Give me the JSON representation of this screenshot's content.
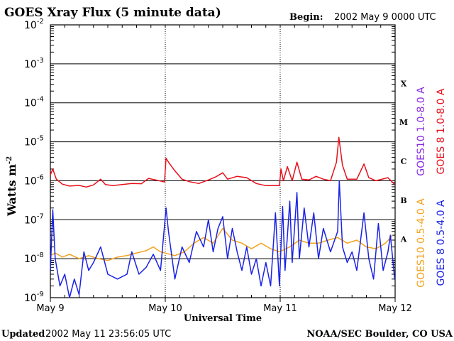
{
  "chart_data": {
    "type": "line",
    "title": "GOES Xray Flux (5 minute data)",
    "begin_label": "Begin:",
    "begin_value": "2002 May 9 0000 UTC",
    "ylabel": "Watts m",
    "ylabel_sup": "-2",
    "xlabel": "Universal Time",
    "y_scale": "log",
    "ylim": [
      1e-09,
      0.01
    ],
    "y_ticks": [
      {
        "base": "10",
        "exp": "-2",
        "value": 0.01
      },
      {
        "base": "10",
        "exp": "-3",
        "value": 0.001
      },
      {
        "base": "10",
        "exp": "-4",
        "value": 0.0001
      },
      {
        "base": "10",
        "exp": "-5",
        "value": 1e-05
      },
      {
        "base": "10",
        "exp": "-6",
        "value": 1e-06
      },
      {
        "base": "10",
        "exp": "-7",
        "value": 1e-07
      },
      {
        "base": "10",
        "exp": "-8",
        "value": 1e-08
      },
      {
        "base": "10",
        "exp": "-9",
        "value": 1e-09
      }
    ],
    "xlim": [
      "2002-05-09",
      "2002-05-12"
    ],
    "x_ticks": [
      {
        "label": "May 9",
        "value": "2002-05-09"
      },
      {
        "label": "May 10",
        "value": "2002-05-10"
      },
      {
        "label": "May 11",
        "value": "2002-05-11"
      },
      {
        "label": "May 12",
        "value": "2002-05-12"
      }
    ],
    "flare_classes": [
      {
        "label": "X",
        "value": 0.0001
      },
      {
        "label": "M",
        "value": 1e-05
      },
      {
        "label": "C",
        "value": 1e-06
      },
      {
        "label": "B",
        "value": 1e-07
      },
      {
        "label": "A",
        "value": 1e-08
      }
    ],
    "grid": true,
    "series": [
      {
        "name": "GOES10 1.0-8.0 A",
        "color": "#8a2be2",
        "values": []
      },
      {
        "name": "GOES 8 1.0-8.0 A",
        "color": "#e8101c",
        "values": [
          [
            "2002-05-09 00:00",
            1.4e-06
          ],
          [
            "2002-05-09 00:30",
            2e-06
          ],
          [
            "2002-05-09 01:15",
            1.1e-06
          ],
          [
            "2002-05-09 02:30",
            8.2e-07
          ],
          [
            "2002-05-09 04:00",
            7.3e-07
          ],
          [
            "2002-05-09 06:00",
            7.6e-07
          ],
          [
            "2002-05-09 07:30",
            6.9e-07
          ],
          [
            "2002-05-09 09:00",
            7.8e-07
          ],
          [
            "2002-05-09 10:30",
            1.1e-06
          ],
          [
            "2002-05-09 11:30",
            8e-07
          ],
          [
            "2002-05-09 13:00",
            7.5e-07
          ],
          [
            "2002-05-09 15:00",
            8e-07
          ],
          [
            "2002-05-09 17:00",
            8.5e-07
          ],
          [
            "2002-05-09 19:00",
            8.4e-07
          ],
          [
            "2002-05-09 20:30",
            1.15e-06
          ],
          [
            "2002-05-09 22:00",
            1.05e-06
          ],
          [
            "2002-05-09 23:50",
            9.3e-07
          ],
          [
            "2002-05-10 00:10",
            3.8e-06
          ],
          [
            "2002-05-10 00:40",
            3e-06
          ],
          [
            "2002-05-10 02:00",
            1.8e-06
          ],
          [
            "2002-05-10 03:30",
            1.1e-06
          ],
          [
            "2002-05-10 05:00",
            9.5e-07
          ],
          [
            "2002-05-10 07:00",
            8.5e-07
          ],
          [
            "2002-05-10 09:00",
            1.05e-06
          ],
          [
            "2002-05-10 10:30",
            1.25e-06
          ],
          [
            "2002-05-10 12:00",
            1.6e-06
          ],
          [
            "2002-05-10 13:00",
            1.1e-06
          ],
          [
            "2002-05-10 15:00",
            1.3e-06
          ],
          [
            "2002-05-10 17:00",
            1.2e-06
          ],
          [
            "2002-05-10 19:00",
            8.5e-07
          ],
          [
            "2002-05-10 21:00",
            7.5e-07
          ],
          [
            "2002-05-10 23:50",
            7.5e-07
          ],
          [
            "2002-05-11 00:10",
            2e-06
          ],
          [
            "2002-05-11 00:40",
            1e-06
          ],
          [
            "2002-05-11 01:30",
            2.3e-06
          ],
          [
            "2002-05-11 02:30",
            1e-06
          ],
          [
            "2002-05-11 03:30",
            3e-06
          ],
          [
            "2002-05-11 04:30",
            1.1e-06
          ],
          [
            "2002-05-11 06:00",
            1.05e-06
          ],
          [
            "2002-05-11 07:30",
            1.3e-06
          ],
          [
            "2002-05-11 09:00",
            1.1e-06
          ],
          [
            "2002-05-11 10:30",
            1e-06
          ],
          [
            "2002-05-11 11:45",
            3e-06
          ],
          [
            "2002-05-11 12:15",
            1.3e-05
          ],
          [
            "2002-05-11 13:00",
            2.5e-06
          ],
          [
            "2002-05-11 14:00",
            1.1e-06
          ],
          [
            "2002-05-11 16:00",
            1.1e-06
          ],
          [
            "2002-05-11 17:30",
            2.7e-06
          ],
          [
            "2002-05-11 18:30",
            1.2e-06
          ],
          [
            "2002-05-11 20:00",
            1e-06
          ],
          [
            "2002-05-11 22:30",
            1.2e-06
          ],
          [
            "2002-05-11 23:55",
            8e-07
          ]
        ]
      },
      {
        "name": "GOES10 0.5-4.0 A",
        "color": "#f4a21c",
        "values": [
          [
            "2002-05-09 00:00",
            1.2e-08
          ],
          [
            "2002-05-09 01:00",
            1.4e-08
          ],
          [
            "2002-05-09 02:30",
            1.1e-08
          ],
          [
            "2002-05-09 04:00",
            1.3e-08
          ],
          [
            "2002-05-09 06:00",
            1e-08
          ],
          [
            "2002-05-09 08:00",
            1.2e-08
          ],
          [
            "2002-05-09 10:00",
            1e-08
          ],
          [
            "2002-05-09 12:00",
            9e-09
          ],
          [
            "2002-05-09 14:00",
            1.1e-08
          ],
          [
            "2002-05-09 16:00",
            1.2e-08
          ],
          [
            "2002-05-09 18:00",
            1.4e-08
          ],
          [
            "2002-05-09 20:00",
            1.6e-08
          ],
          [
            "2002-05-09 21:30",
            2e-08
          ],
          [
            "2002-05-09 23:00",
            1.5e-08
          ],
          [
            "2002-05-10 02:00",
            1.2e-08
          ],
          [
            "2002-05-10 04:00",
            1.5e-08
          ],
          [
            "2002-05-10 06:00",
            2.5e-08
          ],
          [
            "2002-05-10 08:00",
            3.5e-08
          ],
          [
            "2002-05-10 10:00",
            2.5e-08
          ],
          [
            "2002-05-10 12:00",
            6e-08
          ],
          [
            "2002-05-10 14:00",
            3e-08
          ],
          [
            "2002-05-10 16:00",
            2.5e-08
          ],
          [
            "2002-05-10 18:00",
            1.8e-08
          ],
          [
            "2002-05-10 20:00",
            2.5e-08
          ],
          [
            "2002-05-10 22:00",
            1.8e-08
          ],
          [
            "2002-05-10 23:50",
            1.5e-08
          ],
          [
            "2002-05-11 02:00",
            2e-08
          ],
          [
            "2002-05-11 04:00",
            3e-08
          ],
          [
            "2002-05-11 06:00",
            2.5e-08
          ],
          [
            "2002-05-11 08:00",
            2.5e-08
          ],
          [
            "2002-05-11 10:00",
            3e-08
          ],
          [
            "2002-05-11 12:00",
            3.5e-08
          ],
          [
            "2002-05-11 14:00",
            2.5e-08
          ],
          [
            "2002-05-11 16:00",
            3e-08
          ],
          [
            "2002-05-11 18:00",
            2e-08
          ],
          [
            "2002-05-11 20:00",
            1.8e-08
          ],
          [
            "2002-05-11 22:00",
            2.5e-08
          ],
          [
            "2002-05-11 23:30",
            4e-08
          ]
        ]
      },
      {
        "name": "GOES 8 0.5-4.0 A",
        "color": "#1a22e6",
        "values": [
          [
            "2002-05-09 00:00",
            5e-09
          ],
          [
            "2002-05-09 00:30",
            1.8e-07
          ],
          [
            "2002-05-09 01:00",
            1e-08
          ],
          [
            "2002-05-09 02:00",
            2e-09
          ],
          [
            "2002-05-09 03:00",
            4e-09
          ],
          [
            "2002-05-09 04:00",
            1e-09
          ],
          [
            "2002-05-09 05:00",
            3e-09
          ],
          [
            "2002-05-09 06:00",
            1.2e-09
          ],
          [
            "2002-05-09 07:00",
            1.5e-08
          ],
          [
            "2002-05-09 08:00",
            5e-09
          ],
          [
            "2002-05-09 09:00",
            8e-09
          ],
          [
            "2002-05-09 10:30",
            2e-08
          ],
          [
            "2002-05-09 12:00",
            4e-09
          ],
          [
            "2002-05-09 14:00",
            3e-09
          ],
          [
            "2002-05-09 16:00",
            4e-09
          ],
          [
            "2002-05-09 17:00",
            1.5e-08
          ],
          [
            "2002-05-09 18:30",
            4e-09
          ],
          [
            "2002-05-09 20:00",
            6e-09
          ],
          [
            "2002-05-09 21:30",
            1.3e-08
          ],
          [
            "2002-05-09 23:00",
            5e-09
          ],
          [
            "2002-05-10 00:10",
            2e-07
          ],
          [
            "2002-05-10 00:40",
            5e-08
          ],
          [
            "2002-05-10 02:00",
            3e-09
          ],
          [
            "2002-05-10 03:30",
            2e-08
          ],
          [
            "2002-05-10 05:00",
            8e-09
          ],
          [
            "2002-05-10 06:30",
            5e-08
          ],
          [
            "2002-05-10 08:00",
            2e-08
          ],
          [
            "2002-05-10 09:00",
            1e-07
          ],
          [
            "2002-05-10 10:00",
            1.5e-08
          ],
          [
            "2002-05-10 11:00",
            6e-08
          ],
          [
            "2002-05-10 12:00",
            1.2e-07
          ],
          [
            "2002-05-10 13:00",
            1e-08
          ],
          [
            "2002-05-10 14:00",
            6e-08
          ],
          [
            "2002-05-10 15:00",
            1.5e-08
          ],
          [
            "2002-05-10 16:00",
            5e-09
          ],
          [
            "2002-05-10 17:00",
            2e-08
          ],
          [
            "2002-05-10 18:00",
            4e-09
          ],
          [
            "2002-05-10 19:00",
            1e-08
          ],
          [
            "2002-05-10 20:00",
            2e-09
          ],
          [
            "2002-05-10 21:00",
            8e-09
          ],
          [
            "2002-05-10 22:00",
            2e-09
          ],
          [
            "2002-05-10 23:00",
            1.5e-07
          ],
          [
            "2002-05-10 23:50",
            2e-09
          ],
          [
            "2002-05-11 00:30",
            2.2e-07
          ],
          [
            "2002-05-11 01:00",
            5e-09
          ],
          [
            "2002-05-11 02:00",
            3e-07
          ],
          [
            "2002-05-11 02:30",
            8e-09
          ],
          [
            "2002-05-11 03:30",
            5e-07
          ],
          [
            "2002-05-11 04:00",
            1e-08
          ],
          [
            "2002-05-11 05:00",
            2e-07
          ],
          [
            "2002-05-11 06:00",
            2e-08
          ],
          [
            "2002-05-11 07:00",
            1.5e-07
          ],
          [
            "2002-05-11 08:00",
            1e-08
          ],
          [
            "2002-05-11 09:00",
            6e-08
          ],
          [
            "2002-05-11 10:30",
            1.5e-08
          ],
          [
            "2002-05-11 12:00",
            5e-08
          ],
          [
            "2002-05-11 12:20",
            1e-06
          ],
          [
            "2002-05-11 13:00",
            2e-08
          ],
          [
            "2002-05-11 14:00",
            8e-09
          ],
          [
            "2002-05-11 15:00",
            1.5e-08
          ],
          [
            "2002-05-11 16:00",
            5e-09
          ],
          [
            "2002-05-11 17:30",
            1.5e-07
          ],
          [
            "2002-05-11 18:30",
            1e-08
          ],
          [
            "2002-05-11 19:30",
            3e-09
          ],
          [
            "2002-05-11 20:30",
            8e-08
          ],
          [
            "2002-05-11 21:30",
            5e-09
          ],
          [
            "2002-05-11 22:30",
            1.5e-08
          ],
          [
            "2002-05-11 23:00",
            4e-08
          ],
          [
            "2002-05-11 23:55",
            3e-09
          ]
        ]
      }
    ]
  },
  "footer": {
    "updated_label": "Updated",
    "updated_value": "2002 May 11 23:56:05 UTC",
    "credit": "NOAA/SEC Boulder, CO USA"
  }
}
